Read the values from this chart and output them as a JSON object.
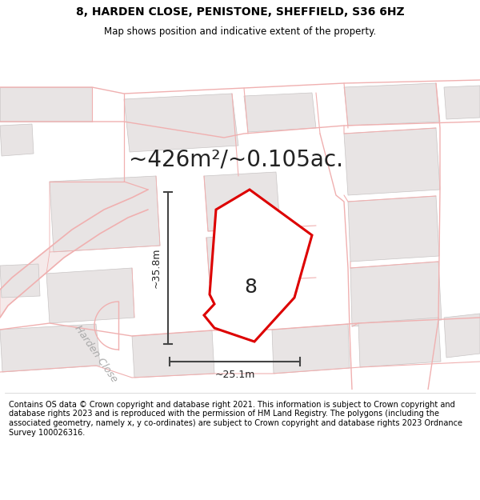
{
  "title": "8, HARDEN CLOSE, PENISTONE, SHEFFIELD, S36 6HZ",
  "subtitle": "Map shows position and indicative extent of the property.",
  "area_label": "~426m²/~0.105ac.",
  "plot_number": "8",
  "dim_width": "~25.1m",
  "dim_height": "~35.8m",
  "street_label": "Harden Close",
  "footer": "Contains OS data © Crown copyright and database right 2021. This information is subject to Crown copyright and database rights 2023 and is reproduced with the permission of HM Land Registry. The polygons (including the associated geometry, namely x, y co-ordinates) are subject to Crown copyright and database rights 2023 Ordnance Survey 100026316.",
  "bg_color": "#ffffff",
  "map_bg": "#f8f8f8",
  "building_color": "#e8e4e4",
  "building_edge": "#c8c4c4",
  "road_line_color": "#f0b0b0",
  "road_fill_color": "#f5e8e8",
  "plot_fill": "#ffffff",
  "plot_outline": "#dd0000",
  "dim_line_color": "#444444",
  "title_fontsize": 10,
  "subtitle_fontsize": 8.5,
  "area_fontsize": 20,
  "plot_label_fontsize": 18,
  "dim_fontsize": 9,
  "street_fontsize": 9,
  "footer_fontsize": 7
}
